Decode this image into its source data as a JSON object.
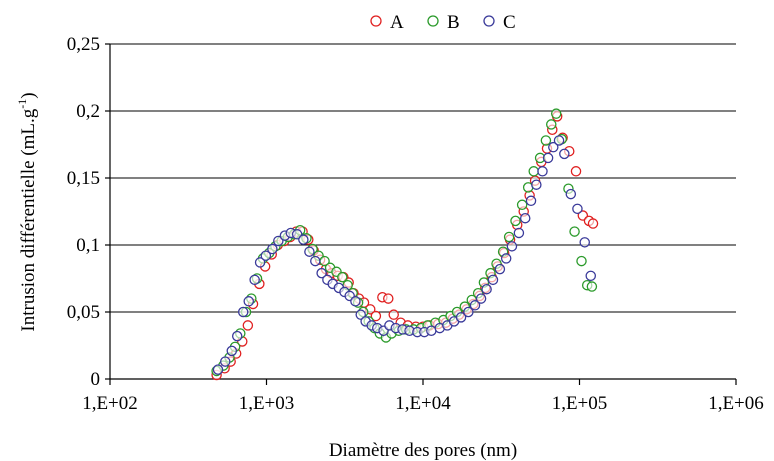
{
  "chart_data": {
    "type": "scatter",
    "title": "",
    "xlabel": "Diamètre des pores (nm)",
    "ylabel_main": "Intrusion différentielle (mL.g",
    "ylabel_sup": "-1",
    "ylabel_close": ")",
    "xscale": "log",
    "xlim": [
      100,
      1000000
    ],
    "ylim": [
      0,
      0.25
    ],
    "xticks": [
      100,
      1000,
      10000,
      100000,
      1000000
    ],
    "xtick_labels": [
      "1,E+02",
      "1,E+03",
      "1,E+04",
      "1,E+05",
      "1,E+06"
    ],
    "yticks": [
      0,
      0.05,
      0.1,
      0.15,
      0.2,
      0.25
    ],
    "ytick_labels": [
      "0",
      "0,05",
      "0,1",
      "0,15",
      "0,2",
      "0,25"
    ],
    "grid": "horizontal",
    "legend_position": "top",
    "series": [
      {
        "name": "A",
        "color": "#e02020",
        "x": [
          480,
          540,
          590,
          640,
          700,
          760,
          820,
          900,
          980,
          1080,
          1180,
          1300,
          1420,
          1550,
          1700,
          1850,
          2000,
          2200,
          2400,
          2600,
          2850,
          3100,
          3350,
          3600,
          3900,
          4200,
          4600,
          5000,
          5500,
          6000,
          6500,
          7200,
          8000,
          9000,
          10000,
          11000,
          12500,
          14000,
          15500,
          17000,
          19000,
          21000,
          23000,
          25000,
          27500,
          30000,
          33000,
          36000,
          40000,
          44000,
          48000,
          52000,
          57000,
          62000,
          67000,
          72000,
          78000,
          86000,
          95000,
          105000,
          115000,
          122000
        ],
        "y": [
          0.003,
          0.008,
          0.013,
          0.019,
          0.028,
          0.04,
          0.056,
          0.071,
          0.084,
          0.093,
          0.1,
          0.103,
          0.106,
          0.11,
          0.11,
          0.104,
          0.096,
          0.089,
          0.082,
          0.079,
          0.077,
          0.076,
          0.072,
          0.064,
          0.06,
          0.057,
          0.052,
          0.047,
          0.061,
          0.06,
          0.048,
          0.042,
          0.04,
          0.039,
          0.039,
          0.04,
          0.041,
          0.042,
          0.045,
          0.048,
          0.052,
          0.056,
          0.062,
          0.068,
          0.076,
          0.084,
          0.094,
          0.104,
          0.115,
          0.125,
          0.137,
          0.148,
          0.162,
          0.172,
          0.186,
          0.196,
          0.18,
          0.17,
          0.155,
          0.122,
          0.118,
          0.116
        ]
      },
      {
        "name": "B",
        "color": "#2a9a2a",
        "x": [
          480,
          530,
          580,
          630,
          680,
          740,
          800,
          870,
          950,
          1040,
          1140,
          1250,
          1370,
          1500,
          1640,
          1800,
          1970,
          2150,
          2350,
          2550,
          2800,
          3050,
          3300,
          3550,
          3850,
          4150,
          4500,
          4900,
          5300,
          5800,
          6300,
          7000,
          7800,
          8700,
          9700,
          10700,
          12000,
          13500,
          15000,
          16500,
          18500,
          20500,
          22500,
          24500,
          27000,
          29500,
          32500,
          35500,
          39000,
          43000,
          47000,
          51000,
          56000,
          61000,
          66000,
          71000,
          77000,
          85000,
          93000,
          103000,
          112000,
          120000
        ],
        "y": [
          0.006,
          0.01,
          0.016,
          0.024,
          0.034,
          0.05,
          0.06,
          0.075,
          0.09,
          0.094,
          0.099,
          0.103,
          0.106,
          0.108,
          0.111,
          0.105,
          0.097,
          0.092,
          0.088,
          0.083,
          0.08,
          0.076,
          0.07,
          0.064,
          0.057,
          0.05,
          0.043,
          0.038,
          0.034,
          0.031,
          0.034,
          0.036,
          0.037,
          0.037,
          0.038,
          0.04,
          0.042,
          0.044,
          0.047,
          0.05,
          0.054,
          0.059,
          0.064,
          0.072,
          0.079,
          0.086,
          0.095,
          0.106,
          0.118,
          0.13,
          0.143,
          0.155,
          0.165,
          0.178,
          0.19,
          0.198,
          0.179,
          0.142,
          0.11,
          0.088,
          0.07,
          0.069
        ]
      },
      {
        "name": "C",
        "color": "#3a3a9a",
        "x": [
          490,
          545,
          600,
          650,
          710,
          770,
          840,
          910,
          990,
          1090,
          1190,
          1310,
          1430,
          1570,
          1720,
          1880,
          2050,
          2250,
          2450,
          2650,
          2900,
          3150,
          3400,
          3700,
          4000,
          4300,
          4700,
          5100,
          5600,
          6100,
          6700,
          7400,
          8200,
          9200,
          10200,
          11300,
          12800,
          14300,
          15800,
          17500,
          19500,
          21500,
          23500,
          25500,
          28000,
          31000,
          34000,
          37000,
          41000,
          45000,
          49000,
          53000,
          58000,
          63000,
          68000,
          74000,
          80000,
          88000,
          97000,
          108000,
          118000
        ],
        "y": [
          0.007,
          0.013,
          0.021,
          0.032,
          0.05,
          0.058,
          0.074,
          0.087,
          0.092,
          0.097,
          0.103,
          0.107,
          0.109,
          0.108,
          0.104,
          0.095,
          0.088,
          0.079,
          0.074,
          0.071,
          0.068,
          0.065,
          0.062,
          0.058,
          0.048,
          0.043,
          0.04,
          0.038,
          0.036,
          0.04,
          0.038,
          0.037,
          0.036,
          0.035,
          0.035,
          0.036,
          0.038,
          0.04,
          0.043,
          0.046,
          0.05,
          0.055,
          0.06,
          0.067,
          0.074,
          0.082,
          0.09,
          0.099,
          0.109,
          0.12,
          0.133,
          0.145,
          0.155,
          0.165,
          0.173,
          0.178,
          0.168,
          0.138,
          0.127,
          0.102,
          0.077
        ]
      }
    ]
  }
}
